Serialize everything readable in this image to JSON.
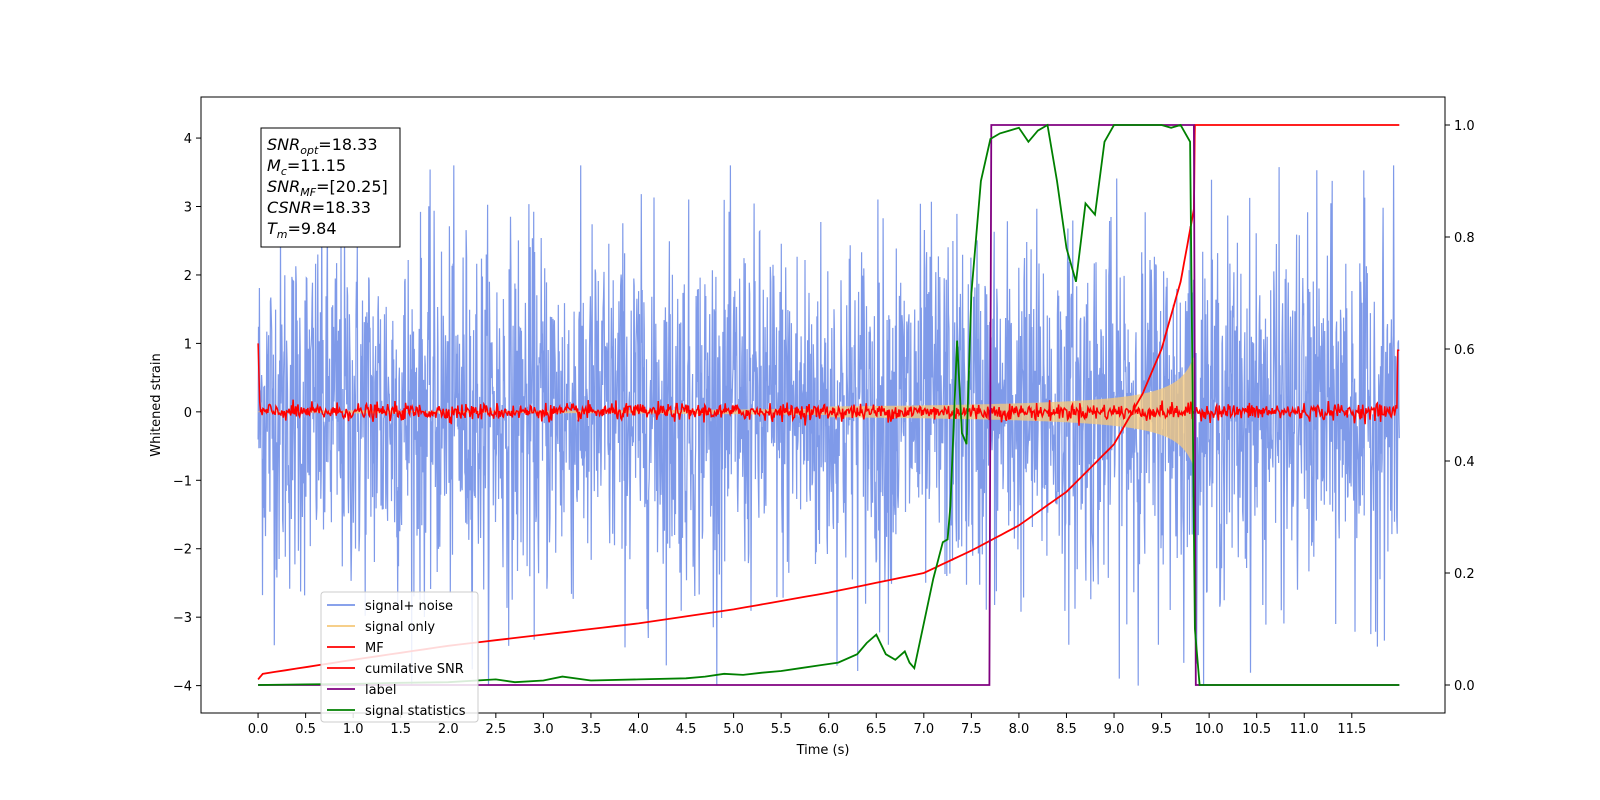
{
  "chart_data": {
    "type": "line",
    "xlabel": "Time (s)",
    "ylabel_left": "Whitened strain",
    "xlim": [
      -0.6,
      12.48
    ],
    "ylim_left": [
      -4.4,
      4.6
    ],
    "ylim_right": [
      -0.05,
      1.05
    ],
    "x_ticks": [
      0.0,
      0.5,
      1.0,
      1.5,
      2.0,
      2.5,
      3.0,
      3.5,
      4.0,
      4.5,
      5.0,
      5.5,
      6.0,
      6.5,
      7.0,
      7.5,
      8.0,
      8.5,
      9.0,
      9.5,
      10.0,
      10.5,
      11.0,
      11.5
    ],
    "x_tick_labels": [
      "0.0",
      "0.5",
      "1.0",
      "1.5",
      "2.0",
      "2.5",
      "3.0",
      "3.5",
      "4.0",
      "4.5",
      "5.0",
      "5.5",
      "6.0",
      "6.5",
      "7.0",
      "7.5",
      "8.0",
      "8.5",
      "9.0",
      "9.5",
      "10.0",
      "10.5",
      "11.0",
      "11.5"
    ],
    "y_ticks_left": [
      -4,
      -3,
      -2,
      -1,
      0,
      1,
      2,
      3,
      4
    ],
    "y_tick_labels_left": [
      "−4",
      "−3",
      "−2",
      "−1",
      "0",
      "1",
      "2",
      "3",
      "4"
    ],
    "y_ticks_right": [
      0.0,
      0.2,
      0.4,
      0.6,
      0.8,
      1.0
    ],
    "y_tick_labels_right": [
      "0.0",
      "0.2",
      "0.4",
      "0.6",
      "0.8",
      "1.0"
    ],
    "legend_position": "lower-left",
    "annotation": {
      "lines": [
        {
          "base": "SNR",
          "sub": "opt",
          "rest": "=18.33"
        },
        {
          "base": "M",
          "sub": "c",
          "rest": "=11.15"
        },
        {
          "base": "SNR",
          "sub": "MF",
          "rest": "=[20.25]"
        },
        {
          "base": "CSNR",
          "sub": "",
          "rest": "=18.33"
        },
        {
          "base": "T",
          "sub": "m",
          "rest": "=9.84"
        }
      ]
    },
    "series": [
      {
        "name": "signal+ noise",
        "axis": "left",
        "color": "#7895e8",
        "noise_amplitude": 1.3,
        "x_range": [
          0,
          12
        ]
      },
      {
        "name": "signal only",
        "axis": "left",
        "color": "#f5c87a",
        "chirp_end_time": 9.84,
        "peak_amplitude": 3.5
      },
      {
        "name": "MF",
        "axis": "left",
        "color": "#ff0000",
        "baseline": 0.0,
        "ripple": 0.06,
        "x_range": [
          0,
          12
        ]
      },
      {
        "name": "cumilative SNR",
        "axis": "right",
        "color": "#ff0000",
        "x": [
          0,
          0.05,
          1,
          2,
          3,
          4,
          5,
          6,
          7,
          7.5,
          8,
          8.5,
          9,
          9.3,
          9.5,
          9.7,
          9.84,
          9.85,
          12
        ],
        "y": [
          0.01,
          0.02,
          0.045,
          0.07,
          0.09,
          0.11,
          0.135,
          0.165,
          0.2,
          0.24,
          0.285,
          0.345,
          0.43,
          0.52,
          0.6,
          0.72,
          0.85,
          1.0,
          1.0
        ]
      },
      {
        "name": "label",
        "axis": "right",
        "color": "#800080",
        "x": [
          0,
          7.69,
          7.71,
          9.84,
          9.86,
          12
        ],
        "y": [
          0,
          0,
          1,
          1,
          0,
          0
        ]
      },
      {
        "name": "signal statistics",
        "axis": "right",
        "color": "#008000",
        "x": [
          0,
          0.5,
          1.0,
          1.5,
          2.0,
          2.5,
          2.7,
          3.0,
          3.2,
          3.5,
          4.0,
          4.5,
          4.7,
          4.9,
          5.1,
          5.3,
          5.5,
          5.7,
          5.9,
          6.1,
          6.3,
          6.4,
          6.5,
          6.6,
          6.7,
          6.8,
          6.85,
          6.9,
          7.0,
          7.1,
          7.2,
          7.25,
          7.28,
          7.35,
          7.4,
          7.45,
          7.5,
          7.6,
          7.7,
          7.8,
          7.9,
          8.0,
          8.1,
          8.2,
          8.3,
          8.4,
          8.5,
          8.6,
          8.7,
          8.8,
          8.9,
          9.0,
          9.1,
          9.3,
          9.5,
          9.6,
          9.7,
          9.8,
          9.85,
          9.9,
          10.0,
          12.0
        ],
        "y": [
          0.0,
          0.001,
          0.002,
          0.004,
          0.005,
          0.01,
          0.005,
          0.008,
          0.015,
          0.008,
          0.01,
          0.012,
          0.015,
          0.02,
          0.018,
          0.022,
          0.025,
          0.03,
          0.035,
          0.04,
          0.055,
          0.075,
          0.09,
          0.055,
          0.045,
          0.06,
          0.04,
          0.03,
          0.11,
          0.19,
          0.255,
          0.26,
          0.32,
          0.615,
          0.45,
          0.43,
          0.7,
          0.9,
          0.975,
          0.985,
          0.99,
          0.995,
          0.97,
          0.99,
          1.0,
          0.9,
          0.78,
          0.72,
          0.86,
          0.84,
          0.97,
          1.0,
          1.0,
          1.0,
          1.0,
          0.995,
          1.0,
          0.97,
          0.1,
          0.0,
          0.0,
          0.0
        ]
      }
    ]
  }
}
